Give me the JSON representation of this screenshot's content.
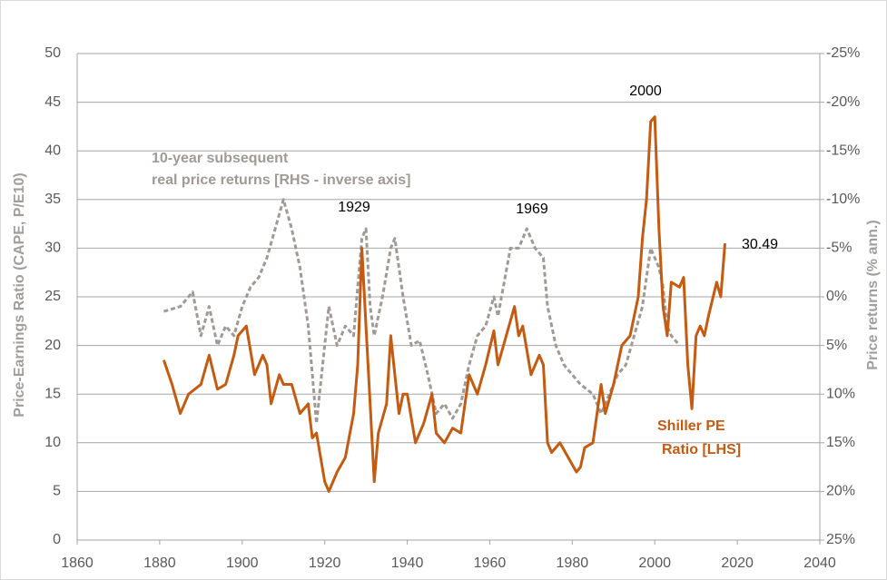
{
  "chart_data": {
    "type": "line",
    "y_label": "Price-Earnings  Ratio (CAPE, P/E10)",
    "y2_label": "Price returns (% ann.)",
    "xlim": [
      1860,
      2040
    ],
    "xticks": [
      1860,
      1880,
      1900,
      1920,
      1940,
      1960,
      1980,
      2000,
      2020,
      2040
    ],
    "ylim": [
      0,
      50
    ],
    "yticks": [
      0,
      5,
      10,
      15,
      20,
      25,
      30,
      35,
      40,
      45,
      50
    ],
    "y2lim": [
      25,
      -25
    ],
    "y2ticks": [
      {
        "value": -25,
        "label": "-25%"
      },
      {
        "value": -20,
        "label": "-20%"
      },
      {
        "value": -15,
        "label": "-15%"
      },
      {
        "value": -10,
        "label": "-10%"
      },
      {
        "value": -5,
        "label": "-5%"
      },
      {
        "value": 0,
        "label": "0%"
      },
      {
        "value": 5,
        "label": "5%"
      },
      {
        "value": 10,
        "label": "10%"
      },
      {
        "value": 15,
        "label": "15%"
      },
      {
        "value": 20,
        "label": "20%"
      },
      {
        "value": 25,
        "label": "25%"
      }
    ],
    "grid": true,
    "annotations": [
      "1929",
      "1969",
      "2000",
      "30.49"
    ],
    "series": [
      {
        "label_lines": [
          "Shiller PE",
          "Ratio [LHS]"
        ],
        "color": "#c55a11",
        "x": [
          1881,
          1883,
          1885,
          1887,
          1890,
          1892,
          1894,
          1896,
          1898,
          1899,
          1901,
          1903,
          1905,
          1906,
          1907,
          1909,
          1910,
          1912,
          1914,
          1916,
          1917,
          1918,
          1920,
          1921,
          1923,
          1925,
          1927,
          1928,
          1929,
          1930,
          1931,
          1932,
          1933,
          1935,
          1936,
          1937,
          1938,
          1939,
          1940,
          1942,
          1944,
          1946,
          1947,
          1949,
          1951,
          1953,
          1955,
          1957,
          1959,
          1961,
          1962,
          1964,
          1966,
          1967,
          1968,
          1970,
          1972,
          1973,
          1974,
          1975,
          1977,
          1979,
          1981,
          1982,
          1983,
          1985,
          1987,
          1988,
          1990,
          1992,
          1994,
          1996,
          1997,
          1998,
          1999,
          2000,
          2001,
          2002,
          2003,
          2004,
          2006,
          2007,
          2008,
          2009,
          2010,
          2011,
          2012,
          2013,
          2015,
          2016,
          2017
        ],
        "values": [
          18.5,
          16,
          13,
          15,
          16,
          19,
          15.5,
          16,
          19,
          21,
          22,
          17,
          19,
          18,
          14,
          17,
          16,
          16,
          13,
          14,
          10.5,
          11,
          6,
          5,
          7,
          8.5,
          13,
          18,
          30,
          22,
          14,
          6,
          11,
          14,
          21,
          17,
          13,
          15,
          15,
          10,
          12,
          15,
          11,
          10,
          11.5,
          11,
          17,
          15,
          18,
          21.5,
          18,
          21,
          24,
          21,
          22,
          17,
          19,
          18,
          10,
          9,
          10,
          8.5,
          7,
          7.5,
          9.5,
          10,
          16,
          13,
          16,
          20,
          21,
          25,
          31,
          35,
          43,
          43.5,
          32,
          24,
          21,
          26.5,
          26,
          27,
          18,
          13.5,
          21,
          22,
          21,
          23,
          26.5,
          25,
          30.49
        ]
      },
      {
        "label_lines": [
          "10-year subsequent",
          "real price returns [RHS - inverse axis]"
        ],
        "color": "#a09a94",
        "axis": "y2",
        "dashed": true,
        "x": [
          1881,
          1885,
          1888,
          1890,
          1892,
          1894,
          1896,
          1898,
          1900,
          1902,
          1904,
          1906,
          1908,
          1910,
          1912,
          1914,
          1916,
          1918,
          1919,
          1921,
          1923,
          1925,
          1927,
          1928,
          1929,
          1930,
          1931,
          1932,
          1934,
          1936,
          1937,
          1939,
          1941,
          1943,
          1945,
          1947,
          1949,
          1951,
          1953,
          1955,
          1957,
          1959,
          1961,
          1962,
          1965,
          1967,
          1969,
          1971,
          1973,
          1974,
          1976,
          1978,
          1980,
          1982,
          1985,
          1987,
          1989,
          1991,
          1993,
          1995,
          1997,
          1998,
          1999,
          2000,
          2001,
          2002,
          2003,
          2004,
          2006
        ],
        "values": [
          1.5,
          1,
          -0.5,
          4,
          1,
          5,
          3,
          4,
          1,
          -1,
          -2,
          -4,
          -7,
          -10,
          -7,
          -3,
          3,
          13,
          9,
          1,
          5,
          3,
          4,
          -1,
          -6,
          -7,
          1,
          4,
          0,
          -5,
          -6,
          0,
          5,
          4.5,
          8,
          12,
          11,
          12.5,
          11,
          7,
          4,
          3,
          0,
          2,
          -5,
          -5,
          -7,
          -5,
          -4,
          1,
          5,
          7,
          8,
          9,
          10,
          12,
          10,
          8,
          7,
          4,
          1,
          -2,
          -5,
          -4,
          -3,
          -1,
          3,
          4,
          5
        ]
      }
    ]
  }
}
